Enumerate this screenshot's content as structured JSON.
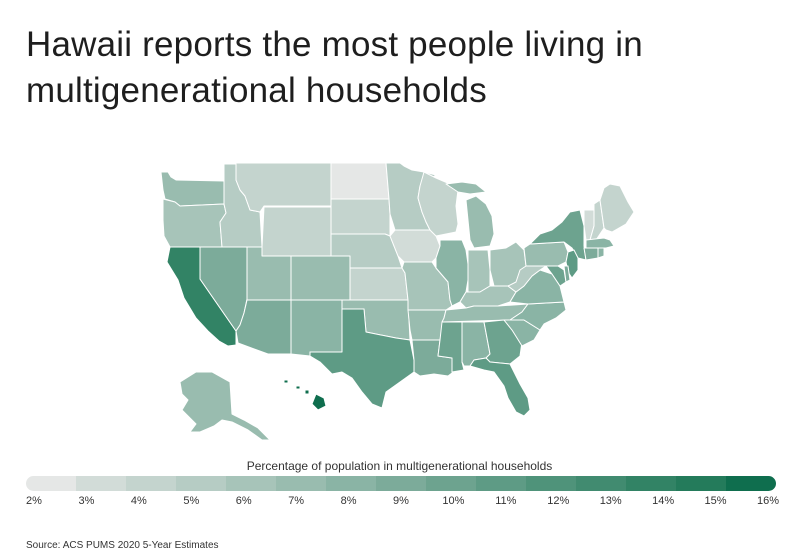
{
  "title": "Hawaii reports the most people living in multigenerational households",
  "legend": {
    "title": "Percentage of population in multigenerational households",
    "ticks": [
      "2%",
      "3%",
      "4%",
      "5%",
      "6%",
      "7%",
      "8%",
      "9%",
      "10%",
      "11%",
      "12%",
      "13%",
      "14%",
      "15%",
      "16%"
    ],
    "colors": [
      "#e5e7e6",
      "#d2dcd8",
      "#c4d4ce",
      "#b6ccc4",
      "#a7c4b9",
      "#99bcaf",
      "#8ab4a5",
      "#7cab9a",
      "#6da38f",
      "#5e9b85",
      "#4f937a",
      "#418b70",
      "#328365",
      "#247b5b",
      "#0f6e4e"
    ]
  },
  "source": "Source: ACS PUMS 2020 5-Year Estimates",
  "map_data": {
    "regions": [
      {
        "name": "washington",
        "value": 7
      },
      {
        "name": "oregon",
        "value": 6
      },
      {
        "name": "california",
        "value": 14
      },
      {
        "name": "nevada",
        "value": 9
      },
      {
        "name": "idaho",
        "value": 5
      },
      {
        "name": "montana",
        "value": 4
      },
      {
        "name": "wyoming",
        "value": 4
      },
      {
        "name": "utah",
        "value": 7
      },
      {
        "name": "arizona",
        "value": 9
      },
      {
        "name": "colorado",
        "value": 7
      },
      {
        "name": "new-mexico",
        "value": 8
      },
      {
        "name": "north-dakota",
        "value": 2
      },
      {
        "name": "south-dakota",
        "value": 4
      },
      {
        "name": "nebraska",
        "value": 5
      },
      {
        "name": "kansas",
        "value": 4
      },
      {
        "name": "oklahoma",
        "value": 7
      },
      {
        "name": "texas",
        "value": 11
      },
      {
        "name": "minnesota",
        "value": 5
      },
      {
        "name": "iowa",
        "value": 3
      },
      {
        "name": "missouri",
        "value": 6
      },
      {
        "name": "arkansas",
        "value": 7
      },
      {
        "name": "louisiana",
        "value": 9
      },
      {
        "name": "wisconsin",
        "value": 4
      },
      {
        "name": "illinois",
        "value": 8
      },
      {
        "name": "michigan",
        "value": 7
      },
      {
        "name": "indiana",
        "value": 6
      },
      {
        "name": "ohio",
        "value": 6
      },
      {
        "name": "kentucky",
        "value": 6
      },
      {
        "name": "tennessee",
        "value": 7
      },
      {
        "name": "mississippi",
        "value": 10
      },
      {
        "name": "alabama",
        "value": 8
      },
      {
        "name": "georgia",
        "value": 10
      },
      {
        "name": "florida",
        "value": 11
      },
      {
        "name": "south-carolina",
        "value": 8
      },
      {
        "name": "north-carolina",
        "value": 8
      },
      {
        "name": "virginia",
        "value": 8
      },
      {
        "name": "west-virginia",
        "value": 5
      },
      {
        "name": "pennsylvania",
        "value": 7
      },
      {
        "name": "new-york",
        "value": 10
      },
      {
        "name": "new-jersey",
        "value": 11
      },
      {
        "name": "maryland",
        "value": 10
      },
      {
        "name": "delaware",
        "value": 9
      },
      {
        "name": "vermont",
        "value": 3
      },
      {
        "name": "new-hampshire",
        "value": 4
      },
      {
        "name": "maine",
        "value": 4
      },
      {
        "name": "massachusetts",
        "value": 8
      },
      {
        "name": "connecticut",
        "value": 9
      },
      {
        "name": "rhode-island",
        "value": 8
      },
      {
        "name": "alaska",
        "value": 7
      },
      {
        "name": "hawaii",
        "value": 16
      }
    ]
  }
}
